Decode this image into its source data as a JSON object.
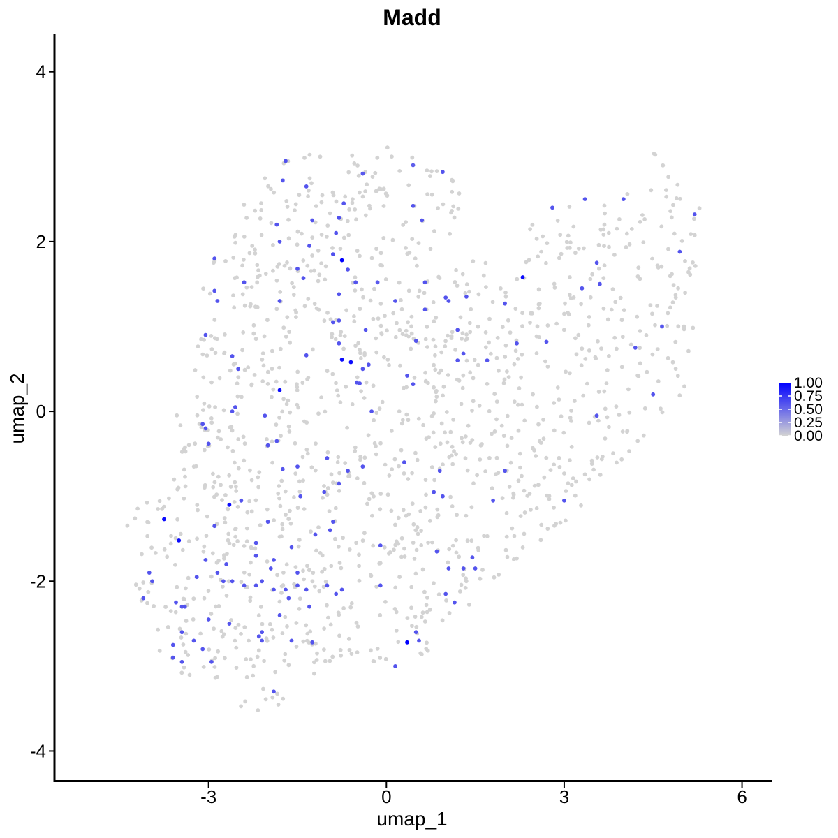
{
  "chart_data": {
    "type": "scatter",
    "title": "Madd",
    "xlabel": "umap_1",
    "ylabel": "umap_2",
    "xlim": [
      -5.6,
      6.5
    ],
    "ylim": [
      -4.35,
      4.45
    ],
    "xticks": [
      -3,
      0,
      3,
      6
    ],
    "yticks": [
      -4,
      -2,
      0,
      2,
      4
    ],
    "xtick_labels": [
      "-3",
      "0",
      "3",
      "6"
    ],
    "ytick_labels": [
      "-4",
      "-2",
      "0",
      "2",
      "4"
    ],
    "grid": false,
    "legend": {
      "placement": "right",
      "type": "colorbar",
      "ticks": [
        1.0,
        0.75,
        0.5,
        0.25,
        0.0
      ],
      "tick_labels": [
        "1.00",
        "0.75",
        "0.50",
        "0.25",
        "0.00"
      ],
      "low_color": "#d3d3d3",
      "high_color": "#0000ff"
    },
    "background_point_color": "#d3d3d3",
    "points": [
      [
        -1.7,
        2.95,
        0.62
      ],
      [
        -1.35,
        2.65,
        0.6
      ],
      [
        -1.75,
        2.72,
        0.6
      ],
      [
        -0.72,
        2.45,
        0.6
      ],
      [
        -0.4,
        2.8,
        0.58
      ],
      [
        0.95,
        2.82,
        0.6
      ],
      [
        0.45,
        2.9,
        0.55
      ],
      [
        0.45,
        2.42,
        0.6
      ],
      [
        0.6,
        2.25,
        0.6
      ],
      [
        -1.25,
        2.25,
        0.6
      ],
      [
        -0.8,
        2.28,
        0.62
      ],
      [
        -1.85,
        2.2,
        0.6
      ],
      [
        -0.85,
        2.1,
        0.6
      ],
      [
        -1.8,
        2.0,
        0.6
      ],
      [
        -1.3,
        1.95,
        0.6
      ],
      [
        -0.9,
        1.85,
        0.62
      ],
      [
        -0.75,
        1.78,
        1.0
      ],
      [
        -2.9,
        1.8,
        0.6
      ],
      [
        -0.65,
        1.67,
        0.6
      ],
      [
        -1.5,
        1.68,
        0.6
      ],
      [
        -1.4,
        1.57,
        0.6
      ],
      [
        -2.4,
        1.52,
        0.6
      ],
      [
        -0.52,
        1.52,
        0.6
      ],
      [
        -0.15,
        1.52,
        0.58
      ],
      [
        -2.9,
        1.42,
        0.6
      ],
      [
        -2.85,
        1.3,
        0.6
      ],
      [
        -1.8,
        1.3,
        0.6
      ],
      [
        -0.8,
        1.38,
        0.6
      ],
      [
        0.15,
        1.3,
        0.6
      ],
      [
        0.65,
        1.52,
        0.6
      ],
      [
        0.65,
        1.2,
        0.6
      ],
      [
        1.05,
        1.3,
        0.6
      ],
      [
        1.0,
        1.34,
        0.6
      ],
      [
        1.35,
        1.35,
        0.6
      ],
      [
        2.0,
        1.27,
        0.6
      ],
      [
        2.3,
        1.58,
        0.95
      ],
      [
        -0.8,
        1.07,
        0.6
      ],
      [
        -0.9,
        1.05,
        0.6
      ],
      [
        -0.35,
        0.96,
        0.6
      ],
      [
        1.2,
        0.96,
        0.6
      ],
      [
        -3.05,
        0.9,
        0.6
      ],
      [
        -0.8,
        0.8,
        0.6
      ],
      [
        0.5,
        0.83,
        0.6
      ],
      [
        2.2,
        0.8,
        0.6
      ],
      [
        2.7,
        0.82,
        0.6
      ],
      [
        -2.6,
        0.65,
        0.6
      ],
      [
        -0.75,
        0.61,
        0.95
      ],
      [
        -0.6,
        0.58,
        0.95
      ],
      [
        -1.35,
        0.66,
        0.6
      ],
      [
        -2.5,
        0.5,
        0.6
      ],
      [
        1.3,
        0.68,
        0.6
      ],
      [
        1.2,
        0.6,
        0.6
      ],
      [
        1.7,
        0.6,
        0.6
      ],
      [
        -0.4,
        0.5,
        0.6
      ],
      [
        -0.45,
        0.33,
        0.6
      ],
      [
        -0.5,
        0.34,
        0.6
      ],
      [
        -1.8,
        0.25,
        0.95
      ],
      [
        0.35,
        0.42,
        0.6
      ],
      [
        0.45,
        0.32,
        0.6
      ],
      [
        -2.6,
        0.0,
        0.6
      ],
      [
        -2.55,
        0.05,
        0.6
      ],
      [
        -3.1,
        -0.15,
        0.6
      ],
      [
        -3.05,
        -0.2,
        0.6
      ],
      [
        -3.0,
        -0.38,
        0.6
      ],
      [
        -2.0,
        -0.4,
        0.6
      ],
      [
        -1.85,
        -0.35,
        0.6
      ],
      [
        -1.5,
        -0.65,
        0.6
      ],
      [
        -1.75,
        -0.68,
        0.6
      ],
      [
        -1.0,
        -0.55,
        0.6
      ],
      [
        -0.8,
        -0.85,
        0.6
      ],
      [
        -0.65,
        -0.7,
        0.6
      ],
      [
        0.3,
        -0.6,
        0.6
      ],
      [
        0.9,
        -0.7,
        0.6
      ],
      [
        -1.05,
        -0.95,
        0.6
      ],
      [
        -0.25,
        0.0,
        0.6
      ],
      [
        -0.3,
        0.55,
        0.6
      ],
      [
        -2.65,
        -1.1,
        0.95
      ],
      [
        -2.45,
        -1.05,
        0.6
      ],
      [
        -1.45,
        -1.0,
        0.6
      ],
      [
        -0.9,
        -1.3,
        0.6
      ],
      [
        0.95,
        -1.0,
        0.6
      ],
      [
        1.8,
        -1.05,
        0.6
      ],
      [
        3.0,
        -1.05,
        0.6
      ],
      [
        -3.75,
        -1.27,
        0.95
      ],
      [
        -3.5,
        -1.52,
        0.95
      ],
      [
        -2.9,
        -1.35,
        0.6
      ],
      [
        -2.2,
        -1.55,
        0.6
      ],
      [
        -1.6,
        -1.6,
        0.6
      ],
      [
        -0.95,
        -1.4,
        0.6
      ],
      [
        -0.1,
        -1.58,
        0.6
      ],
      [
        -3.05,
        -1.75,
        0.6
      ],
      [
        -2.7,
        -1.8,
        0.6
      ],
      [
        -2.2,
        -1.7,
        0.6
      ],
      [
        -1.9,
        -1.75,
        0.6
      ],
      [
        -1.95,
        -1.85,
        0.6
      ],
      [
        0.85,
        -1.65,
        0.6
      ],
      [
        1.05,
        -1.85,
        0.6
      ],
      [
        1.3,
        -1.85,
        0.6
      ],
      [
        1.5,
        -1.85,
        0.6
      ],
      [
        1.45,
        -1.72,
        0.6
      ],
      [
        -4.0,
        -1.9,
        0.6
      ],
      [
        -3.95,
        -2.0,
        0.6
      ],
      [
        -4.1,
        -2.2,
        0.6
      ],
      [
        -3.2,
        -1.95,
        0.6
      ],
      [
        -2.85,
        -1.9,
        0.6
      ],
      [
        -2.75,
        -2.0,
        0.6
      ],
      [
        -2.6,
        -2.0,
        0.6
      ],
      [
        -2.4,
        -2.05,
        0.6
      ],
      [
        -2.2,
        -2.05,
        0.6
      ],
      [
        -2.1,
        -2.0,
        0.6
      ],
      [
        -1.9,
        -2.1,
        0.6
      ],
      [
        -1.7,
        -2.1,
        0.6
      ],
      [
        -1.5,
        -2.05,
        0.6
      ],
      [
        -1.35,
        -2.1,
        0.6
      ],
      [
        -1.0,
        -2.05,
        0.6
      ],
      [
        -0.85,
        -2.15,
        0.6
      ],
      [
        -0.75,
        -2.1,
        0.6
      ],
      [
        1.0,
        -2.15,
        0.6
      ],
      [
        1.15,
        -2.25,
        0.6
      ],
      [
        -3.55,
        -2.25,
        0.6
      ],
      [
        -3.4,
        -2.3,
        0.6
      ],
      [
        -3.45,
        -2.3,
        0.6
      ],
      [
        -3.0,
        -2.45,
        0.6
      ],
      [
        -2.65,
        -2.5,
        0.6
      ],
      [
        -1.65,
        -2.2,
        0.6
      ],
      [
        -1.3,
        -2.3,
        0.6
      ],
      [
        -2.1,
        -2.6,
        0.6
      ],
      [
        -2.15,
        -2.65,
        0.6
      ],
      [
        -2.1,
        -2.7,
        0.6
      ],
      [
        -1.6,
        -2.7,
        0.6
      ],
      [
        -1.25,
        -2.72,
        0.6
      ],
      [
        -3.45,
        -2.6,
        0.6
      ],
      [
        -3.25,
        -2.7,
        0.6
      ],
      [
        0.35,
        -2.72,
        1.0
      ],
      [
        0.5,
        -2.6,
        0.6
      ],
      [
        0.55,
        -2.7,
        0.6
      ],
      [
        -3.6,
        -2.9,
        0.6
      ],
      [
        -3.45,
        -2.95,
        0.6
      ],
      [
        -2.95,
        -2.95,
        0.6
      ],
      [
        0.15,
        -3.0,
        0.6
      ],
      [
        -1.9,
        -3.3,
        0.6
      ],
      [
        -3.1,
        -2.8,
        0.6
      ],
      [
        -1.5,
        -1.9,
        0.6
      ],
      [
        -0.1,
        -2.05,
        0.6
      ],
      [
        -3.6,
        -2.75,
        0.6
      ],
      [
        -1.2,
        -1.45,
        0.6
      ],
      [
        0.8,
        -0.95,
        0.6
      ],
      [
        2.0,
        -0.7,
        0.6
      ],
      [
        2.8,
        2.4,
        0.6
      ],
      [
        3.35,
        2.5,
        0.6
      ],
      [
        4.0,
        2.5,
        0.6
      ],
      [
        5.2,
        2.32,
        0.6
      ],
      [
        4.95,
        1.88,
        0.6
      ],
      [
        3.55,
        1.75,
        0.6
      ],
      [
        3.3,
        1.45,
        0.6
      ],
      [
        3.6,
        1.5,
        0.6
      ],
      [
        4.65,
        1.0,
        0.6
      ],
      [
        4.2,
        0.75,
        0.6
      ],
      [
        4.5,
        0.2,
        0.6
      ],
      [
        3.55,
        -0.05,
        0.6
      ],
      [
        -2.0,
        -1.3,
        0.6
      ],
      [
        -0.4,
        -0.65,
        0.6
      ],
      [
        -1.8,
        -2.4,
        0.6
      ],
      [
        -2.05,
        -0.05,
        0.6
      ]
    ]
  }
}
